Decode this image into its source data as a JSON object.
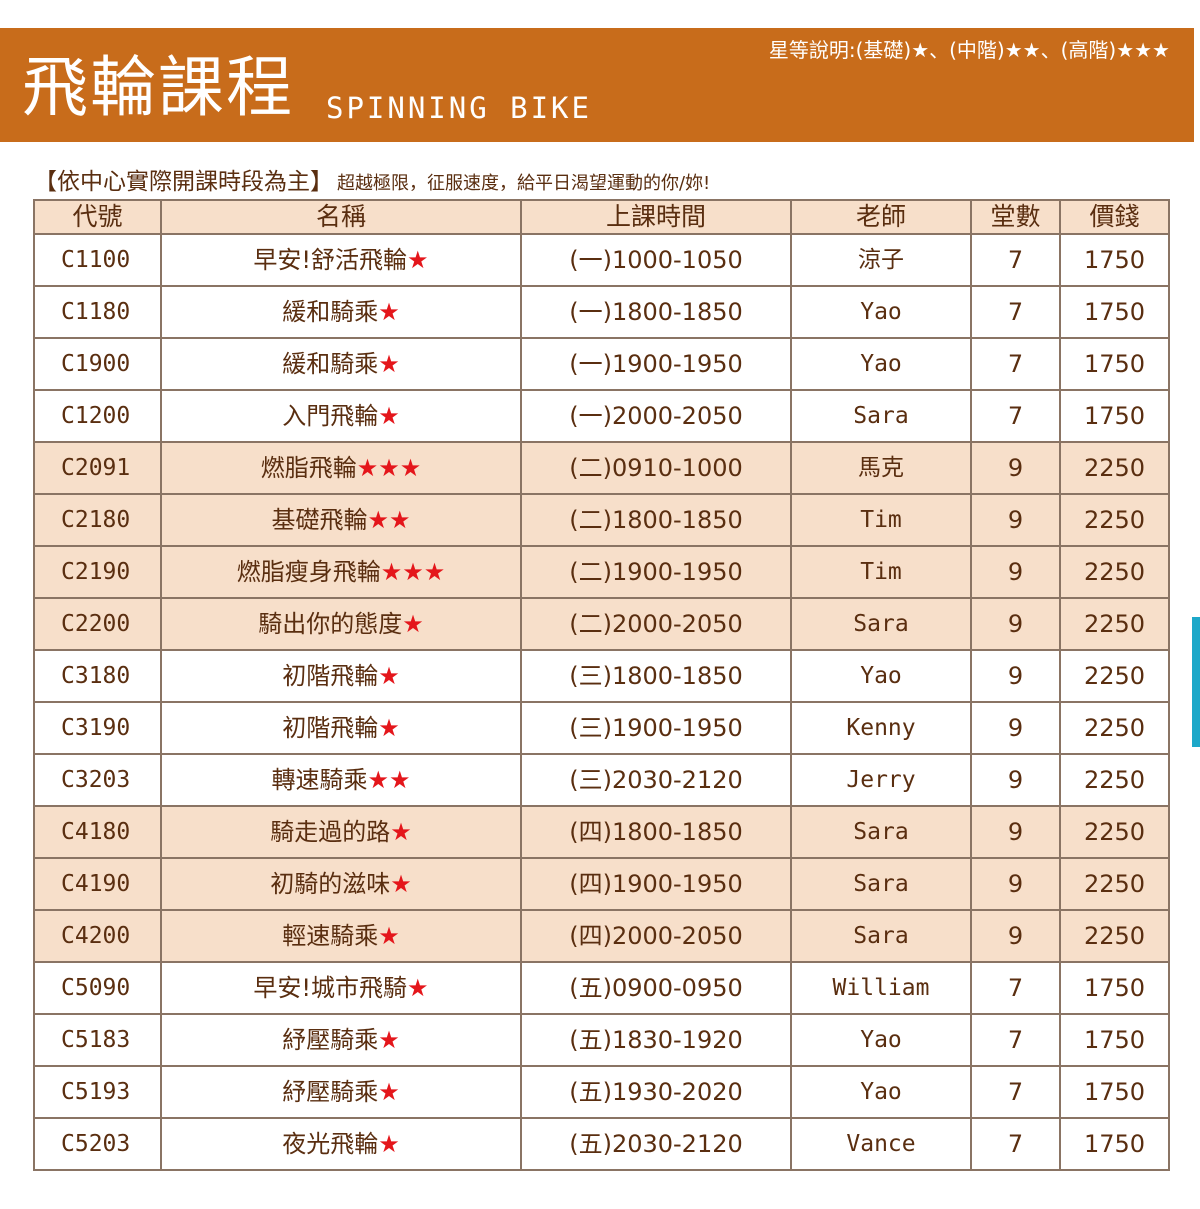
{
  "header": {
    "title": "飛輪課程",
    "subtitle": "SPINNING BIKE",
    "star_legend": "星等說明:(基礎)★、(中階)★★、(高階)★★★"
  },
  "notice": {
    "main": "【依中心實際開課時段為主】",
    "sub": "超越極限，征服速度，給平日渴望運動的你/妳!"
  },
  "colors": {
    "banner": "#c86c1b",
    "highlight_row": "#f7dfca",
    "star": "#e4161b",
    "side_mark": "#1da8c9"
  },
  "table": {
    "headers": [
      "代號",
      "名稱",
      "上課時間",
      "老師",
      "堂數",
      "價錢"
    ],
    "rows": [
      {
        "code": "C1100",
        "name": "早安!舒活飛輪",
        "stars": "★",
        "time": "(一)1000-1050",
        "teacher": "涼子",
        "sessions": "7",
        "price": "1750",
        "highlight": false
      },
      {
        "code": "C1180",
        "name": "緩和騎乘",
        "stars": "★",
        "time": "(一)1800-1850",
        "teacher": "Yao",
        "sessions": "7",
        "price": "1750",
        "highlight": false
      },
      {
        "code": "C1900",
        "name": "緩和騎乘",
        "stars": "★",
        "time": "(一)1900-1950",
        "teacher": "Yao",
        "sessions": "7",
        "price": "1750",
        "highlight": false
      },
      {
        "code": "C1200",
        "name": "入門飛輪",
        "stars": "★",
        "time": "(一)2000-2050",
        "teacher": "Sara",
        "sessions": "7",
        "price": "1750",
        "highlight": false
      },
      {
        "code": "C2091",
        "name": "燃脂飛輪",
        "stars": "★★★",
        "time": "(二)0910-1000",
        "teacher": "馬克",
        "sessions": "9",
        "price": "2250",
        "highlight": true
      },
      {
        "code": "C2180",
        "name": "基礎飛輪",
        "stars": "★★",
        "time": "(二)1800-1850",
        "teacher": "Tim",
        "sessions": "9",
        "price": "2250",
        "highlight": true
      },
      {
        "code": "C2190",
        "name": "燃脂瘦身飛輪",
        "stars": "★★★",
        "time": "(二)1900-1950",
        "teacher": "Tim",
        "sessions": "9",
        "price": "2250",
        "highlight": true
      },
      {
        "code": "C2200",
        "name": "騎出你的態度",
        "stars": "★",
        "time": "(二)2000-2050",
        "teacher": "Sara",
        "sessions": "9",
        "price": "2250",
        "highlight": true
      },
      {
        "code": "C3180",
        "name": "初階飛輪",
        "stars": "★",
        "time": "(三)1800-1850",
        "teacher": "Yao",
        "sessions": "9",
        "price": "2250",
        "highlight": false
      },
      {
        "code": "C3190",
        "name": "初階飛輪",
        "stars": "★",
        "time": "(三)1900-1950",
        "teacher": "Kenny",
        "sessions": "9",
        "price": "2250",
        "highlight": false
      },
      {
        "code": "C3203",
        "name": "轉速騎乘",
        "stars": "★★",
        "time": "(三)2030-2120",
        "teacher": "Jerry",
        "sessions": "9",
        "price": "2250",
        "highlight": false
      },
      {
        "code": "C4180",
        "name": "騎走過的路",
        "stars": "★",
        "time": "(四)1800-1850",
        "teacher": "Sara",
        "sessions": "9",
        "price": "2250",
        "highlight": true
      },
      {
        "code": "C4190",
        "name": "初騎的滋味",
        "stars": "★",
        "time": "(四)1900-1950",
        "teacher": "Sara",
        "sessions": "9",
        "price": "2250",
        "highlight": true
      },
      {
        "code": "C4200",
        "name": "輕速騎乘",
        "stars": "★",
        "time": "(四)2000-2050",
        "teacher": "Sara",
        "sessions": "9",
        "price": "2250",
        "highlight": true
      },
      {
        "code": "C5090",
        "name": "早安!城市飛騎",
        "stars": "★",
        "time": "(五)0900-0950",
        "teacher": "William",
        "sessions": "7",
        "price": "1750",
        "highlight": false
      },
      {
        "code": "C5183",
        "name": "紓壓騎乘",
        "stars": "★",
        "time": "(五)1830-1920",
        "teacher": "Yao",
        "sessions": "7",
        "price": "1750",
        "highlight": false
      },
      {
        "code": "C5193",
        "name": "紓壓騎乘",
        "stars": "★",
        "time": "(五)1930-2020",
        "teacher": "Yao",
        "sessions": "7",
        "price": "1750",
        "highlight": false
      },
      {
        "code": "C5203",
        "name": "夜光飛輪",
        "stars": "★",
        "time": "(五)2030-2120",
        "teacher": "Vance",
        "sessions": "7",
        "price": "1750",
        "highlight": false
      }
    ]
  }
}
